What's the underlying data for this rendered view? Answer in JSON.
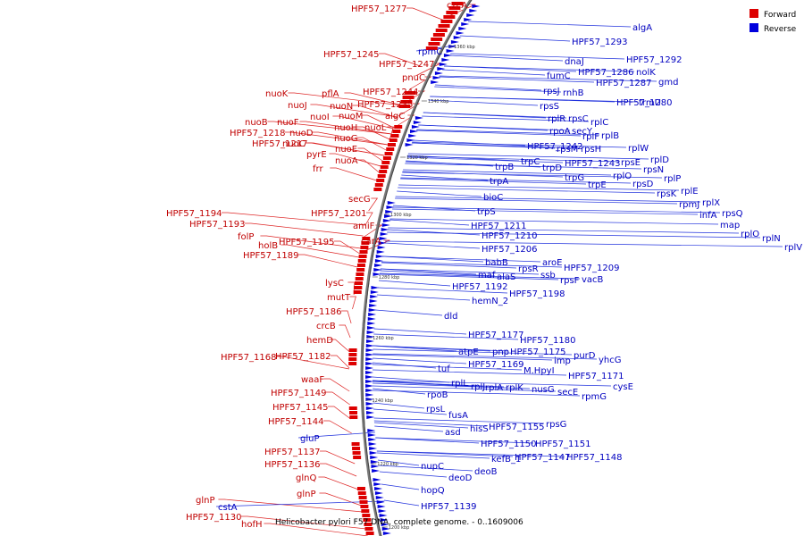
{
  "caption": "Helicobacter pylori F57 DNA, complete genome. - 0..1609006",
  "legend": [
    {
      "label": "Forward",
      "color": "#dd0000"
    },
    {
      "label": "Reverse",
      "color": "#0000dd"
    }
  ],
  "ticks": [
    "1360 kbp",
    "1340 kbp",
    "1320 kbp",
    "1300 kbp",
    "1280 kbp",
    "1260 kbp",
    "1240 kbp",
    "1220 kbp",
    "1200 kbp"
  ],
  "forward_labels": [
    "HPF57_1277",
    "czcA",
    "HPF57_1245",
    "HPF57_1247",
    "pnuC",
    "HPF57_1244",
    "HPF57_1235",
    "pflA",
    "nuoK",
    "nuoJ",
    "nuoN",
    "nuoM",
    "nuoI",
    "algC",
    "nuoB",
    "nuoF",
    "nuoH",
    "nuoL",
    "HPF57_1218",
    "nuoD",
    "nuoG",
    "HPF57_1217",
    "nuoC",
    "nuoE",
    "pyrE",
    "nuoA",
    "frr",
    "secG",
    "HPF57_1201",
    "HPF57_1194",
    "HPF57_1193",
    "amiF",
    "folP",
    "HPF57_1195",
    "carA",
    "holB",
    "HPF57_1189",
    "lysC",
    "mutT",
    "HPF57_1186",
    "crcB",
    "hemD",
    "HPF57_1168",
    "HPF57_1182",
    "waaF",
    "HPF57_1149",
    "HPF57_1145",
    "HPF57_1144",
    "HPF57_1137",
    "HPF57_1136",
    "glnQ",
    "glnP",
    "glnP",
    "HPF57_1130",
    "hofH"
  ],
  "reverse_labels": [
    "algA",
    "HPF57_1293",
    "dnaJ",
    "HPF57_1292",
    "HPF57_1286",
    "nolK",
    "gmd",
    "fumC",
    "HPF57_1287",
    "rpmC",
    "rpsJ",
    "rnhB",
    "HPF57_1280",
    "trmU",
    "rpsS",
    "rplR",
    "rpsC",
    "rplC",
    "rpoA",
    "secY",
    "rplF",
    "rplB",
    "rpsM",
    "rpsH",
    "rplW",
    "HPF57_1242",
    "rplD",
    "trpC",
    "HPF57_1243",
    "rpsE",
    "trpD",
    "rpsN",
    "rplO",
    "trpB",
    "trpG",
    "rpsD",
    "rplP",
    "trpE",
    "rpsK",
    "rplE",
    "trpA",
    "rplX",
    "rpmJ",
    "infA",
    "rpsQ",
    "bioC",
    "map",
    "rplO",
    "rplN",
    "trpS",
    "rplV",
    "HPF57_1211",
    "HPF57_1210",
    "HPF57_1206",
    "babB",
    "aroE",
    "HPF57_1209",
    "rpsR",
    "maf",
    "alaS",
    "ssb",
    "rpsF",
    "vacB",
    "HPF57_1192",
    "HPF57_1198",
    "hemN_2",
    "dld",
    "HPF57_1177",
    "HPF57_1180",
    "atpE",
    "pnp",
    "HPF57_1175",
    "purD",
    "imp",
    "yhcG",
    "HPF57_1169",
    "M.HpyI",
    "tuf",
    "HPF57_1171",
    "rplL",
    "rplJ",
    "rplA",
    "rplK",
    "nusG",
    "secE",
    "cysE",
    "rpmG",
    "rpoB",
    "rpsL",
    "fusA",
    "hisS",
    "HPF57_1155",
    "rpsG",
    "asd",
    "HPF57_1150",
    "HPF57_1151",
    "kefB_1",
    "HPF57_1147",
    "HPF57_1148",
    "nupC",
    "deoB",
    "deoD",
    "hopQ",
    "HPF57_1139",
    "gluP",
    "cstA"
  ]
}
